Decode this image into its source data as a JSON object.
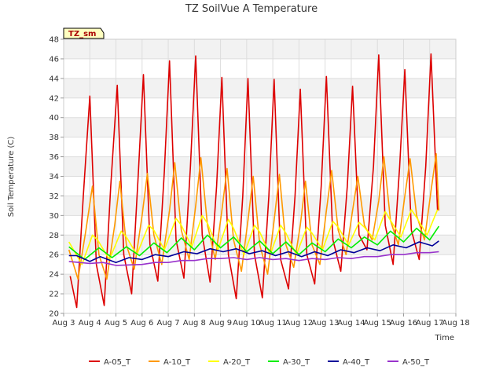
{
  "chart_data": {
    "type": "line",
    "title": "TZ SoilVue A Temperature",
    "xlabel": "Time",
    "ylabel": "Soil Temperature (C)",
    "badge": "TZ_sm",
    "ylim": [
      20,
      48
    ],
    "yticks": [
      20,
      22,
      24,
      26,
      28,
      30,
      32,
      34,
      36,
      38,
      40,
      42,
      44,
      46,
      48
    ],
    "xlim": [
      3,
      18
    ],
    "xticks": [
      {
        "v": 3,
        "label": "Aug 3"
      },
      {
        "v": 4,
        "label": "Aug 4"
      },
      {
        "v": 5,
        "label": "Aug 5"
      },
      {
        "v": 6,
        "label": "Aug 6"
      },
      {
        "v": 7,
        "label": "Aug 7"
      },
      {
        "v": 8,
        "label": "Aug 8"
      },
      {
        "v": 9,
        "label": "Aug 9"
      },
      {
        "v": 10,
        "label": "Aug 10"
      },
      {
        "v": 11,
        "label": "Aug 11"
      },
      {
        "v": 12,
        "label": "Aug 12"
      },
      {
        "v": 13,
        "label": "Aug 13"
      },
      {
        "v": 14,
        "label": "Aug 14"
      },
      {
        "v": 15,
        "label": "Aug 15"
      },
      {
        "v": 16,
        "label": "Aug 16"
      },
      {
        "v": 17,
        "label": "Aug 17"
      },
      {
        "v": 18,
        "label": "Aug 18"
      }
    ],
    "grid": true,
    "legend_position": "bottom",
    "series": [
      {
        "name": "A-05_T",
        "color": "#dd0000",
        "points": [
          [
            3.25,
            23.8
          ],
          [
            3.5,
            20.6
          ],
          [
            3.75,
            32.0
          ],
          [
            4.0,
            42.2
          ],
          [
            4.25,
            25.0
          ],
          [
            4.55,
            20.8
          ],
          [
            4.8,
            33.0
          ],
          [
            5.05,
            43.3
          ],
          [
            5.3,
            26.0
          ],
          [
            5.6,
            22.0
          ],
          [
            5.85,
            34.0
          ],
          [
            6.05,
            44.4
          ],
          [
            6.3,
            27.0
          ],
          [
            6.6,
            23.3
          ],
          [
            6.85,
            34.5
          ],
          [
            7.05,
            45.8
          ],
          [
            7.3,
            27.5
          ],
          [
            7.6,
            23.6
          ],
          [
            7.85,
            35.0
          ],
          [
            8.05,
            46.3
          ],
          [
            8.3,
            28.0
          ],
          [
            8.6,
            23.2
          ],
          [
            8.85,
            33.0
          ],
          [
            9.05,
            44.1
          ],
          [
            9.3,
            26.0
          ],
          [
            9.6,
            21.5
          ],
          [
            9.85,
            32.0
          ],
          [
            10.05,
            44.0
          ],
          [
            10.3,
            26.0
          ],
          [
            10.6,
            21.6
          ],
          [
            10.85,
            32.0
          ],
          [
            11.05,
            43.9
          ],
          [
            11.3,
            25.5
          ],
          [
            11.6,
            22.5
          ],
          [
            11.85,
            32.0
          ],
          [
            12.05,
            42.9
          ],
          [
            12.3,
            26.0
          ],
          [
            12.6,
            23.0
          ],
          [
            12.85,
            33.0
          ],
          [
            13.05,
            44.2
          ],
          [
            13.3,
            27.5
          ],
          [
            13.6,
            24.3
          ],
          [
            13.85,
            33.0
          ],
          [
            14.05,
            43.2
          ],
          [
            14.3,
            28.0
          ],
          [
            14.6,
            26.5
          ],
          [
            14.85,
            35.0
          ],
          [
            15.05,
            46.4
          ],
          [
            15.3,
            29.0
          ],
          [
            15.6,
            25.0
          ],
          [
            15.85,
            35.0
          ],
          [
            16.05,
            44.9
          ],
          [
            16.3,
            28.5
          ],
          [
            16.6,
            25.5
          ],
          [
            16.85,
            35.0
          ],
          [
            17.05,
            46.5
          ],
          [
            17.3,
            30.5
          ]
        ]
      },
      {
        "name": "A-10_T",
        "color": "#ff9900",
        "points": [
          [
            3.2,
            26.5
          ],
          [
            3.55,
            23.5
          ],
          [
            3.85,
            28.5
          ],
          [
            4.1,
            33.0
          ],
          [
            4.35,
            26.0
          ],
          [
            4.65,
            23.5
          ],
          [
            4.95,
            29.0
          ],
          [
            5.15,
            33.5
          ],
          [
            5.4,
            27.0
          ],
          [
            5.7,
            24.5
          ],
          [
            6.0,
            30.0
          ],
          [
            6.2,
            34.3
          ],
          [
            6.45,
            28.0
          ],
          [
            6.75,
            25.0
          ],
          [
            7.05,
            30.5
          ],
          [
            7.25,
            35.4
          ],
          [
            7.5,
            28.5
          ],
          [
            7.8,
            25.5
          ],
          [
            8.05,
            31.0
          ],
          [
            8.25,
            35.9
          ],
          [
            8.5,
            29.0
          ],
          [
            8.8,
            25.5
          ],
          [
            9.05,
            30.5
          ],
          [
            9.25,
            34.8
          ],
          [
            9.5,
            27.5
          ],
          [
            9.8,
            24.3
          ],
          [
            10.05,
            29.5
          ],
          [
            10.25,
            34.0
          ],
          [
            10.5,
            27.0
          ],
          [
            10.8,
            24.0
          ],
          [
            11.05,
            29.5
          ],
          [
            11.25,
            34.2
          ],
          [
            11.5,
            27.0
          ],
          [
            11.8,
            24.7
          ],
          [
            12.05,
            29.0
          ],
          [
            12.25,
            33.5
          ],
          [
            12.5,
            27.0
          ],
          [
            12.8,
            25.0
          ],
          [
            13.05,
            30.5
          ],
          [
            13.25,
            34.6
          ],
          [
            13.5,
            28.5
          ],
          [
            13.8,
            26.0
          ],
          [
            14.05,
            30.5
          ],
          [
            14.25,
            34.0
          ],
          [
            14.5,
            29.0
          ],
          [
            14.8,
            27.5
          ],
          [
            15.05,
            31.5
          ],
          [
            15.25,
            36.0
          ],
          [
            15.5,
            29.5
          ],
          [
            15.8,
            27.0
          ],
          [
            16.05,
            32.0
          ],
          [
            16.25,
            35.8
          ],
          [
            16.5,
            30.0
          ],
          [
            16.8,
            27.5
          ],
          [
            17.05,
            32.5
          ],
          [
            17.25,
            36.3
          ],
          [
            17.35,
            30.5
          ]
        ]
      },
      {
        "name": "A-20_T",
        "color": "#ffff00",
        "points": [
          [
            3.2,
            27.3
          ],
          [
            3.7,
            25.0
          ],
          [
            4.1,
            28.0
          ],
          [
            4.3,
            27.5
          ],
          [
            4.75,
            25.5
          ],
          [
            5.2,
            28.4
          ],
          [
            5.4,
            27.8
          ],
          [
            5.8,
            26.0
          ],
          [
            6.25,
            29.0
          ],
          [
            6.45,
            28.5
          ],
          [
            6.85,
            26.5
          ],
          [
            7.3,
            29.7
          ],
          [
            7.5,
            29.0
          ],
          [
            7.9,
            26.8
          ],
          [
            8.3,
            30.0
          ],
          [
            8.5,
            29.2
          ],
          [
            8.9,
            26.5
          ],
          [
            9.3,
            29.6
          ],
          [
            9.5,
            28.7
          ],
          [
            9.9,
            26.0
          ],
          [
            10.3,
            29.0
          ],
          [
            10.5,
            28.3
          ],
          [
            10.9,
            26.0
          ],
          [
            11.3,
            29.0
          ],
          [
            11.5,
            28.2
          ],
          [
            11.9,
            26.0
          ],
          [
            12.3,
            28.8
          ],
          [
            12.5,
            28.2
          ],
          [
            12.9,
            26.5
          ],
          [
            13.3,
            29.4
          ],
          [
            13.5,
            28.8
          ],
          [
            13.9,
            27.0
          ],
          [
            14.3,
            29.3
          ],
          [
            14.5,
            28.8
          ],
          [
            14.9,
            27.5
          ],
          [
            15.3,
            30.4
          ],
          [
            15.5,
            29.5
          ],
          [
            15.9,
            27.8
          ],
          [
            16.3,
            30.6
          ],
          [
            16.5,
            29.8
          ],
          [
            16.9,
            28.0
          ],
          [
            17.3,
            30.6
          ]
        ]
      },
      {
        "name": "A-30_T",
        "color": "#00ee00",
        "points": [
          [
            3.2,
            26.8
          ],
          [
            3.8,
            25.5
          ],
          [
            4.35,
            26.7
          ],
          [
            4.85,
            25.7
          ],
          [
            5.4,
            26.8
          ],
          [
            5.9,
            25.9
          ],
          [
            6.45,
            27.2
          ],
          [
            6.95,
            26.2
          ],
          [
            7.5,
            27.7
          ],
          [
            8.0,
            26.5
          ],
          [
            8.5,
            28.0
          ],
          [
            9.0,
            26.7
          ],
          [
            9.5,
            27.8
          ],
          [
            10.0,
            26.3
          ],
          [
            10.5,
            27.4
          ],
          [
            11.0,
            26.1
          ],
          [
            11.5,
            27.3
          ],
          [
            12.0,
            26.0
          ],
          [
            12.5,
            27.2
          ],
          [
            13.0,
            26.3
          ],
          [
            13.5,
            27.6
          ],
          [
            14.0,
            26.7
          ],
          [
            14.5,
            27.8
          ],
          [
            15.0,
            27.0
          ],
          [
            15.5,
            28.4
          ],
          [
            16.0,
            27.3
          ],
          [
            16.5,
            28.7
          ],
          [
            17.0,
            27.5
          ],
          [
            17.35,
            28.9
          ]
        ]
      },
      {
        "name": "A-40_T",
        "color": "#000099",
        "points": [
          [
            3.2,
            25.9
          ],
          [
            3.5,
            25.9
          ],
          [
            4.0,
            25.3
          ],
          [
            4.4,
            25.8
          ],
          [
            5.0,
            25.2
          ],
          [
            5.5,
            25.7
          ],
          [
            6.0,
            25.5
          ],
          [
            6.5,
            26.0
          ],
          [
            7.0,
            25.8
          ],
          [
            7.6,
            26.3
          ],
          [
            8.1,
            26.1
          ],
          [
            8.6,
            26.6
          ],
          [
            9.1,
            26.3
          ],
          [
            9.6,
            26.6
          ],
          [
            10.1,
            26.1
          ],
          [
            10.6,
            26.4
          ],
          [
            11.1,
            25.9
          ],
          [
            11.6,
            26.3
          ],
          [
            12.1,
            25.8
          ],
          [
            12.6,
            26.3
          ],
          [
            13.1,
            25.9
          ],
          [
            13.6,
            26.5
          ],
          [
            14.1,
            26.2
          ],
          [
            14.6,
            26.7
          ],
          [
            15.1,
            26.4
          ],
          [
            15.6,
            27.0
          ],
          [
            16.1,
            26.7
          ],
          [
            16.6,
            27.3
          ],
          [
            17.1,
            26.9
          ],
          [
            17.35,
            27.4
          ]
        ]
      },
      {
        "name": "A-50_T",
        "color": "#9933cc",
        "points": [
          [
            3.2,
            25.3
          ],
          [
            4.0,
            25.1
          ],
          [
            4.5,
            25.2
          ],
          [
            5.0,
            24.9
          ],
          [
            6.0,
            25.0
          ],
          [
            6.5,
            25.2
          ],
          [
            7.0,
            25.2
          ],
          [
            7.5,
            25.4
          ],
          [
            8.0,
            25.4
          ],
          [
            8.5,
            25.6
          ],
          [
            9.0,
            25.6
          ],
          [
            9.5,
            25.7
          ],
          [
            10.0,
            25.5
          ],
          [
            10.5,
            25.7
          ],
          [
            11.0,
            25.5
          ],
          [
            11.5,
            25.6
          ],
          [
            12.0,
            25.4
          ],
          [
            12.5,
            25.6
          ],
          [
            13.0,
            25.5
          ],
          [
            13.5,
            25.7
          ],
          [
            14.0,
            25.6
          ],
          [
            14.5,
            25.8
          ],
          [
            15.0,
            25.8
          ],
          [
            15.5,
            26.0
          ],
          [
            16.0,
            26.0
          ],
          [
            16.5,
            26.2
          ],
          [
            17.0,
            26.2
          ],
          [
            17.35,
            26.3
          ]
        ]
      }
    ]
  }
}
